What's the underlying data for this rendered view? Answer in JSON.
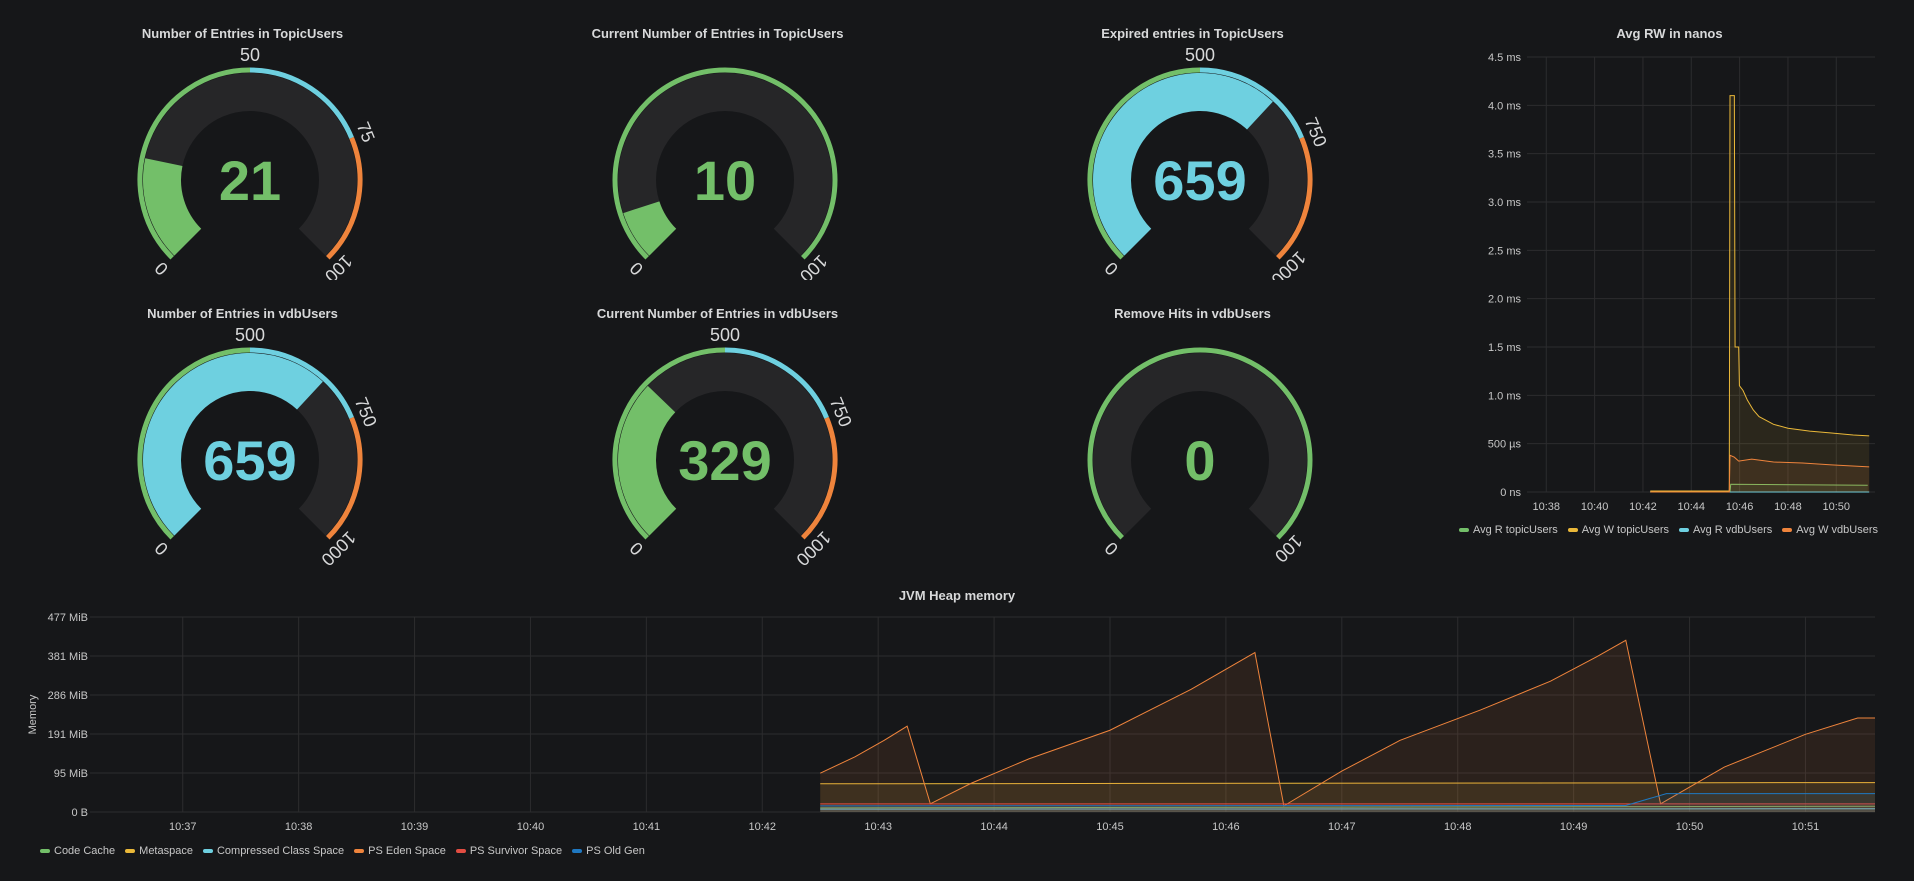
{
  "colors": {
    "green": "#73bf69",
    "blue": "#6ed0e0",
    "orange": "#ef843c",
    "track": "#262628",
    "yellow": "#eab839",
    "red": "#e24d42",
    "darkblue": "#1f78c1"
  },
  "gauges": [
    {
      "title": "Number of Entries in TopicUsers",
      "value": "21",
      "num": 21,
      "min": 0,
      "max": 100,
      "thresholds": [
        {
          "at": 0,
          "color": "green"
        },
        {
          "at": 50,
          "color": "blue"
        },
        {
          "at": 75,
          "color": "orange"
        }
      ],
      "labels": [
        "0",
        "50",
        "75",
        "100"
      ],
      "value_color": "green"
    },
    {
      "title": "Current Number of Entries in TopicUsers",
      "value": "10",
      "num": 10,
      "min": 0,
      "max": 100,
      "thresholds": [
        {
          "at": 0,
          "color": "green"
        }
      ],
      "labels": [
        "0",
        "100"
      ],
      "value_color": "green"
    },
    {
      "title": "Expired entries in TopicUsers",
      "value": "659",
      "num": 659,
      "min": 0,
      "max": 1000,
      "thresholds": [
        {
          "at": 0,
          "color": "green"
        },
        {
          "at": 500,
          "color": "blue"
        },
        {
          "at": 750,
          "color": "orange"
        }
      ],
      "labels": [
        "0",
        "500",
        "750",
        "1000"
      ],
      "value_color": "blue"
    },
    {
      "title": "Number of Entries in vdbUsers",
      "value": "659",
      "num": 659,
      "min": 0,
      "max": 1000,
      "thresholds": [
        {
          "at": 0,
          "color": "green"
        },
        {
          "at": 500,
          "color": "blue"
        },
        {
          "at": 750,
          "color": "orange"
        }
      ],
      "labels": [
        "0",
        "500",
        "750",
        "1000"
      ],
      "value_color": "blue"
    },
    {
      "title": "Current Number of Entries in vdbUsers",
      "value": "329",
      "num": 329,
      "min": 0,
      "max": 1000,
      "thresholds": [
        {
          "at": 0,
          "color": "green"
        },
        {
          "at": 500,
          "color": "blue"
        },
        {
          "at": 750,
          "color": "orange"
        }
      ],
      "labels": [
        "0",
        "500",
        "750",
        "1000"
      ],
      "value_color": "green"
    },
    {
      "title": "Remove Hits in vdbUsers",
      "value": "0",
      "num": 0,
      "min": 0,
      "max": 100,
      "thresholds": [
        {
          "at": 0,
          "color": "green"
        }
      ],
      "labels": [
        "0",
        "100"
      ],
      "value_color": "green"
    }
  ],
  "chart_data": [
    {
      "type": "line",
      "title": "Avg RW in nanos",
      "y_ticks": [
        "0 ns",
        "500 µs",
        "1.0 ms",
        "1.5 ms",
        "2.0 ms",
        "2.5 ms",
        "3.0 ms",
        "3.5 ms",
        "4.0 ms",
        "4.5 ms"
      ],
      "x_ticks": [
        "10:38",
        "10:40",
        "10:42",
        "10:44",
        "10:46",
        "10:48",
        "10:50"
      ],
      "ylim": [
        0,
        4.5
      ],
      "xlim": [
        10.62,
        10.86
      ],
      "unit": "ms",
      "series": [
        {
          "name": "Avg R topicUsers",
          "color": "green",
          "points": [
            [
              10.705,
              0
            ],
            [
              10.76,
              0
            ],
            [
              10.7605,
              0.08
            ],
            [
              10.855,
              0.07
            ]
          ]
        },
        {
          "name": "Avg W topicUsers",
          "color": "yellow",
          "points": [
            [
              10.705,
              0.01
            ],
            [
              10.7595,
              0.01
            ],
            [
              10.76,
              4.1
            ],
            [
              10.763,
              4.1
            ],
            [
              10.7635,
              1.5
            ],
            [
              10.766,
              1.5
            ],
            [
              10.7665,
              1.1
            ],
            [
              10.769,
              1.05
            ],
            [
              10.772,
              0.95
            ],
            [
              10.776,
              0.85
            ],
            [
              10.78,
              0.78
            ],
            [
              10.79,
              0.7
            ],
            [
              10.8,
              0.66
            ],
            [
              10.815,
              0.63
            ],
            [
              10.83,
              0.61
            ],
            [
              10.845,
              0.59
            ],
            [
              10.856,
              0.58
            ]
          ]
        },
        {
          "name": "Avg R vdbUsers",
          "color": "blue",
          "points": [
            [
              10.705,
              0
            ],
            [
              10.856,
              0
            ]
          ]
        },
        {
          "name": "Avg W vdbUsers",
          "color": "orange",
          "points": [
            [
              10.705,
              0
            ],
            [
              10.7595,
              0
            ],
            [
              10.76,
              0.38
            ],
            [
              10.763,
              0.36
            ],
            [
              10.766,
              0.32
            ],
            [
              10.775,
              0.34
            ],
            [
              10.79,
              0.31
            ],
            [
              10.81,
              0.3
            ],
            [
              10.83,
              0.28
            ],
            [
              10.856,
              0.26
            ]
          ]
        }
      ]
    },
    {
      "type": "area",
      "title": "JVM Heap memory",
      "ylabel": "Memory",
      "y_ticks": [
        "0 B",
        "95 MiB",
        "191 MiB",
        "286 MiB",
        "381 MiB",
        "477 MiB"
      ],
      "x_ticks": [
        "10:37",
        "10:38",
        "10:39",
        "10:40",
        "10:41",
        "10:42",
        "10:43",
        "10:44",
        "10:45",
        "10:46",
        "10:47",
        "10:48",
        "10:49",
        "10:50",
        "10:51"
      ],
      "ylim": [
        0,
        477
      ],
      "xlim": [
        36.2,
        51.6
      ],
      "series": [
        {
          "name": "Code Cache",
          "color": "green",
          "points": [
            [
              42.5,
              10
            ],
            [
              51.6,
              14
            ]
          ]
        },
        {
          "name": "Metaspace",
          "color": "yellow",
          "points": [
            [
              42.5,
              69
            ],
            [
              51.6,
              72
            ]
          ]
        },
        {
          "name": "Compressed Class Space",
          "color": "blue",
          "points": [
            [
              42.5,
              7
            ],
            [
              51.6,
              8
            ]
          ]
        },
        {
          "name": "PS Eden Space",
          "color": "orange",
          "points": [
            [
              42.5,
              95
            ],
            [
              42.8,
              135
            ],
            [
              43.05,
              175
            ],
            [
              43.25,
              210
            ],
            [
              43.45,
              20
            ],
            [
              43.8,
              70
            ],
            [
              44.3,
              130
            ],
            [
              45.0,
              200
            ],
            [
              45.7,
              300
            ],
            [
              46.25,
              390
            ],
            [
              46.5,
              15
            ],
            [
              47.0,
              100
            ],
            [
              47.5,
              175
            ],
            [
              48.2,
              250
            ],
            [
              48.8,
              320
            ],
            [
              49.2,
              380
            ],
            [
              49.45,
              420
            ],
            [
              49.75,
              20
            ],
            [
              50.3,
              110
            ],
            [
              51.0,
              190
            ],
            [
              51.45,
              230
            ],
            [
              51.6,
              230
            ]
          ]
        },
        {
          "name": "PS Survivor Space",
          "color": "red",
          "points": [
            [
              42.5,
              20
            ],
            [
              51.6,
              20
            ]
          ]
        },
        {
          "name": "PS Old Gen",
          "color": "darkblue",
          "points": [
            [
              42.5,
              15
            ],
            [
              49.45,
              16
            ],
            [
              49.8,
              45
            ],
            [
              51.6,
              45
            ]
          ]
        }
      ]
    }
  ]
}
